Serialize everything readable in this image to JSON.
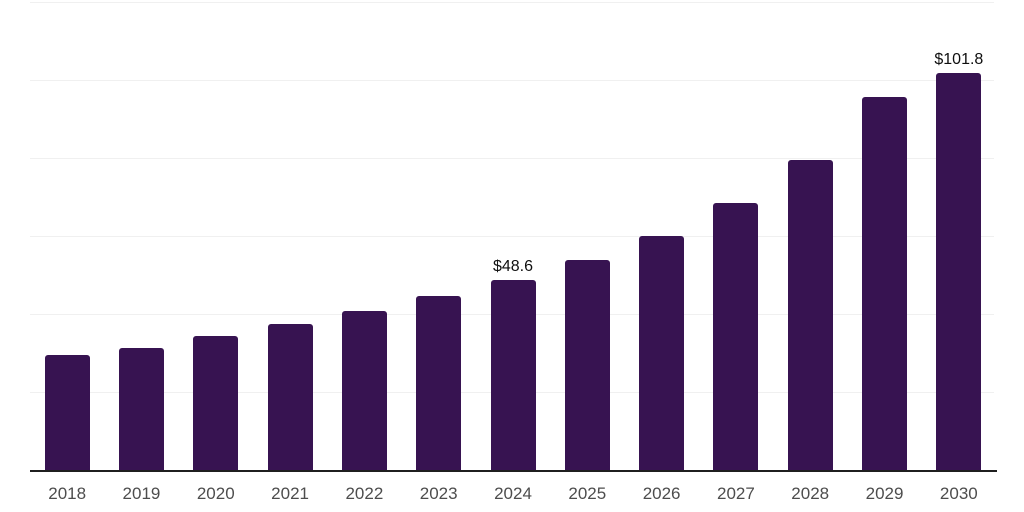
{
  "chart_data": {
    "type": "bar",
    "title": "",
    "xlabel": "",
    "ylabel": "",
    "categories": [
      "2018",
      "2019",
      "2020",
      "2021",
      "2022",
      "2023",
      "2024",
      "2025",
      "2026",
      "2027",
      "2028",
      "2029",
      "2030"
    ],
    "values": [
      29.4,
      31.4,
      34.4,
      37.5,
      40.7,
      44.6,
      48.6,
      53.9,
      60.0,
      68.5,
      79.6,
      95.7,
      101.8
    ],
    "data_labels": [
      null,
      null,
      null,
      null,
      null,
      null,
      "$48.6",
      null,
      null,
      null,
      null,
      null,
      "$101.8"
    ],
    "ylim": [
      0,
      120
    ],
    "gridline_values": [
      20,
      40,
      60,
      80,
      100,
      120
    ],
    "grid": true,
    "legend_position": "none",
    "colors": {
      "background": "#ffffff",
      "bar": "#371351",
      "axis_line": "#1f1f1f",
      "gridline": "#f0f0f0",
      "tick_label": "#4d4d4d",
      "data_label": "#0f0f0f"
    }
  }
}
